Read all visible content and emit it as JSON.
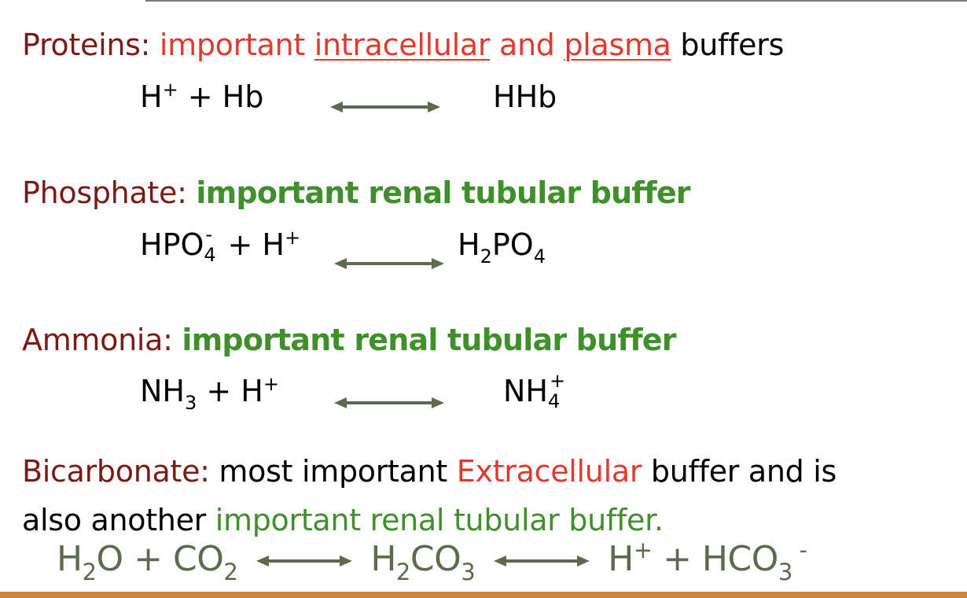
{
  "sections": {
    "proteins": {
      "label": "Proteins:",
      "desc_1": "important",
      "desc_2": "intracellular",
      "desc_3": "and",
      "desc_4": "plasma",
      "desc_5": "buffers",
      "eq_left_base": "H",
      "eq_left_sup": "+",
      "eq_left_rest": " + Hb",
      "eq_right": "HHb"
    },
    "phosphate": {
      "label": "Phosphate:",
      "desc": "important renal tubular buffer",
      "eq_left_1": "HPO",
      "eq_left_sub": "4",
      "eq_left_sup": "-",
      "eq_left_2": " + H",
      "eq_left_sup2": "+",
      "eq_right_1": "H",
      "eq_right_sub1": "2",
      "eq_right_2": "PO",
      "eq_right_sub2": "4"
    },
    "ammonia": {
      "label": "Ammonia:",
      "desc": "important renal tubular buffer",
      "eq_left_1": "NH",
      "eq_left_sub": "3",
      "eq_left_2": " + H",
      "eq_left_sup": "+",
      "eq_right_1": "NH",
      "eq_right_sub": "4",
      "eq_right_sup": "+"
    },
    "bicarbonate": {
      "label": "Bicarbonate:",
      "line1_a": " most important ",
      "line1_b": "Extracellular",
      "line1_c": " buffer and is",
      "line2_a": "also another ",
      "line2_b": "important renal tubular buffer.",
      "eq_h": "H",
      "eq_sub2a": "2",
      "eq_o_plus_co": "O + CO",
      "eq_sub2b": "2",
      "eq_h2": "H",
      "eq_sub2c": "2",
      "eq_co": "CO",
      "eq_sub3a": "3",
      "eq_h3": "H",
      "eq_sup_plus": "+",
      "eq_plus_hco": " + HCO",
      "eq_sub3b": "3",
      "eq_sup_minus": " -"
    }
  },
  "colors": {
    "label": "#7b1a14",
    "highlight_red": "#e03a2f",
    "highlight_green": "#3f8f2b",
    "arrow": "#5c6a4e",
    "footer_bar": "#d0863a"
  }
}
